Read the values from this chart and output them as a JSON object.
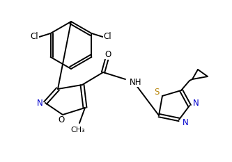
{
  "bg_color": "#ffffff",
  "line_color": "#000000",
  "atom_colors": {
    "N": "#0000cd",
    "O": "#000000",
    "S": "#b8860b",
    "Cl": "#000000"
  },
  "figsize": [
    3.33,
    2.33
  ],
  "dpi": 100,
  "lw": 1.4
}
